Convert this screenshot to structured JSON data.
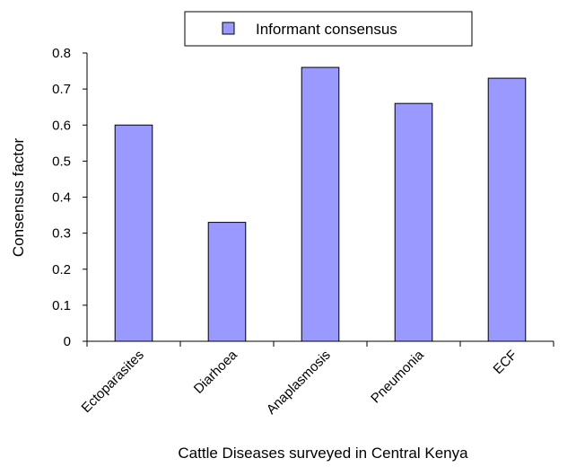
{
  "chart_data": {
    "type": "bar",
    "categories": [
      "Ectoparasites",
      "Diarhoea",
      "Anaplasmosis",
      "Pneumonia",
      "ECF"
    ],
    "series": [
      {
        "name": "Informant consensus",
        "values": [
          0.6,
          0.33,
          0.76,
          0.66,
          0.73
        ],
        "color": "#9999ff"
      }
    ],
    "xlabel": "Cattle Diseases surveyed in Central Kenya",
    "ylabel": "Consensus factor",
    "ylim": [
      0,
      0.8
    ],
    "yticks": [
      "0",
      "0.1",
      "0.2",
      "0.3",
      "0.4",
      "0.5",
      "0.6",
      "0.7",
      "0.8"
    ],
    "grid": false,
    "legend_position": "top"
  }
}
